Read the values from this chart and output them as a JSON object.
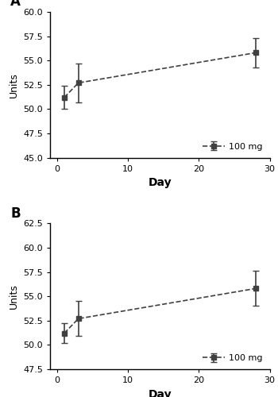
{
  "panel_A": {
    "label": "A",
    "x": [
      1,
      3,
      28
    ],
    "y": [
      51.2,
      52.7,
      55.8
    ],
    "yerr": [
      1.2,
      2.0,
      1.5
    ],
    "ylim": [
      45.0,
      60.0
    ],
    "yticks": [
      45.0,
      47.5,
      50.0,
      52.5,
      55.0,
      57.5,
      60.0
    ],
    "ylabel": "Units",
    "xlabel": "Day",
    "legend_label": "100 mg"
  },
  "panel_B": {
    "label": "B",
    "x": [
      1,
      3,
      28
    ],
    "y": [
      51.2,
      52.7,
      55.8
    ],
    "yerr": [
      1.0,
      1.8,
      1.8
    ],
    "ylim": [
      47.5,
      62.5
    ],
    "yticks": [
      47.5,
      50.0,
      52.5,
      55.0,
      57.5,
      60.0,
      62.5
    ],
    "ylabel": "Units",
    "xlabel": "Day",
    "legend_label": "100 mg"
  },
  "xlim": [
    -1,
    30
  ],
  "xticks": [
    0,
    10,
    20,
    30
  ],
  "line_color": "#404040",
  "marker": "s",
  "markersize": 5,
  "linestyle": "--",
  "capsize": 3,
  "elinewidth": 1.2,
  "linewidth": 1.2
}
